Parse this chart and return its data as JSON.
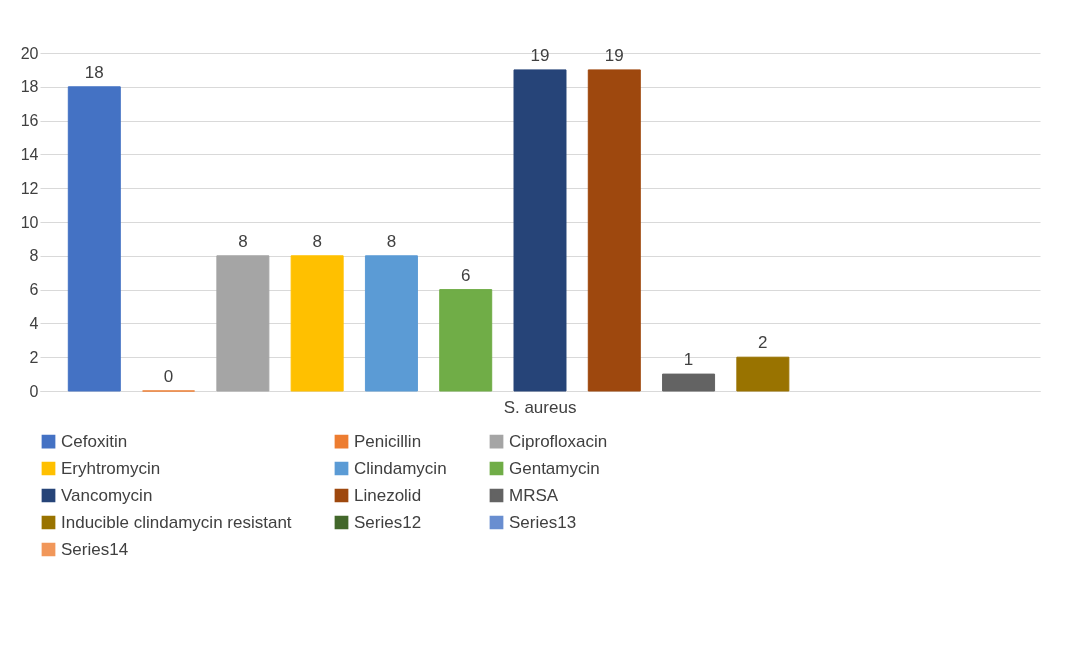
{
  "chart_data": {
    "type": "bar",
    "categories": [
      "S. aureus"
    ],
    "series": [
      {
        "name": "Cefoxitin",
        "color": "#4472c4",
        "values": [
          18
        ]
      },
      {
        "name": "Penicillin",
        "color": "#ed7d31",
        "values": [
          0
        ]
      },
      {
        "name": "Ciprofloxacin",
        "color": "#a5a5a5",
        "values": [
          8
        ]
      },
      {
        "name": "Eryhtromycin",
        "color": "#ffc000",
        "values": [
          8
        ]
      },
      {
        "name": "Clindamycin",
        "color": "#5b9bd5",
        "values": [
          8
        ]
      },
      {
        "name": "Gentamycin",
        "color": "#70ad47",
        "values": [
          6
        ]
      },
      {
        "name": "Vancomycin",
        "color": "#264478",
        "values": [
          19
        ]
      },
      {
        "name": "Linezolid",
        "color": "#9e480e",
        "values": [
          19
        ]
      },
      {
        "name": "MRSA",
        "color": "#636363",
        "values": [
          1
        ]
      },
      {
        "name": "Inducible clindamycin resistant",
        "color": "#997300",
        "values": [
          2
        ]
      },
      {
        "name": "Series12",
        "color": "#43682b",
        "values": [
          null
        ]
      },
      {
        "name": "Series13",
        "color": "#698ed0",
        "values": [
          null
        ]
      },
      {
        "name": "Series14",
        "color": "#f1975a",
        "values": [
          null
        ]
      }
    ],
    "ylim": [
      0,
      20
    ],
    "yticks": [
      0,
      2,
      4,
      6,
      8,
      10,
      12,
      14,
      16,
      18,
      20
    ],
    "grid": true,
    "legend": "bottom",
    "data_labels": true
  }
}
